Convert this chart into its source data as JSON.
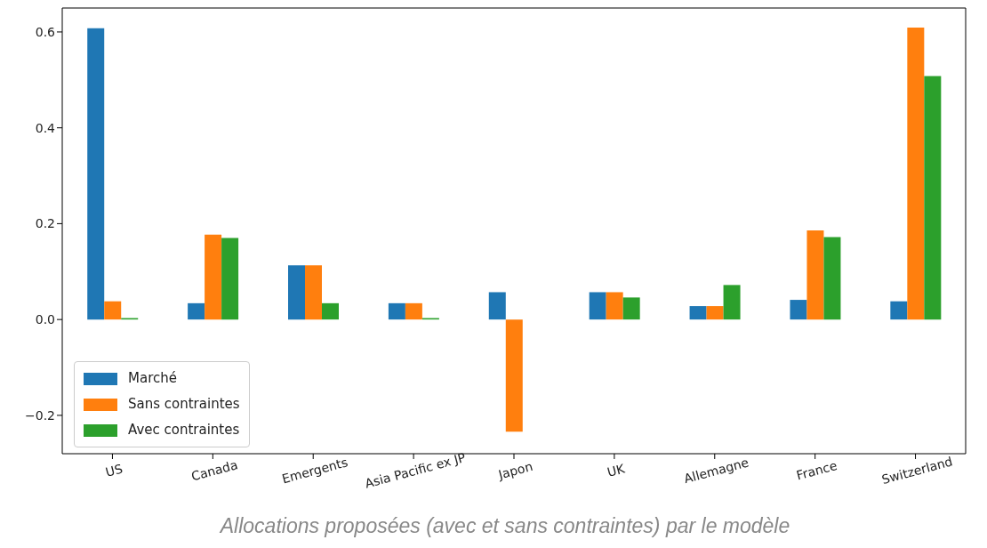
{
  "chart_data": {
    "type": "bar",
    "categories": [
      "US",
      "Canada",
      "Emergents",
      "Asia Pacific ex JP",
      "Japon",
      "UK",
      "Allemagne",
      "France",
      "Switzerland"
    ],
    "series": [
      {
        "name": "Marché",
        "color": "#1f77b4",
        "values": [
          0.608,
          0.034,
          0.113,
          0.034,
          0.057,
          0.057,
          0.028,
          0.041,
          0.038
        ]
      },
      {
        "name": "Sans contraintes",
        "color": "#ff7f0e",
        "values": [
          0.038,
          0.177,
          0.113,
          0.034,
          -0.234,
          0.057,
          0.028,
          0.186,
          0.609
        ]
      },
      {
        "name": "Avec contraintes",
        "color": "#2ca02c",
        "values": [
          0.003,
          0.17,
          0.034,
          0.003,
          0,
          0.046,
          0.072,
          0.172,
          0.508
        ]
      }
    ],
    "ylim": [
      -0.28,
      0.65
    ],
    "yticks": [
      {
        "value": -0.2,
        "label": "−0.2"
      },
      {
        "value": 0,
        "label": "0.0"
      },
      {
        "value": 0.2,
        "label": "0.2"
      },
      {
        "value": 0.4,
        "label": "0.4"
      },
      {
        "value": 0.6,
        "label": "0.6"
      }
    ],
    "grid": false,
    "legend": "bottom left",
    "annotations": [
      "Allocations proposées (avec et sans contraintes) par le modèle"
    ]
  }
}
